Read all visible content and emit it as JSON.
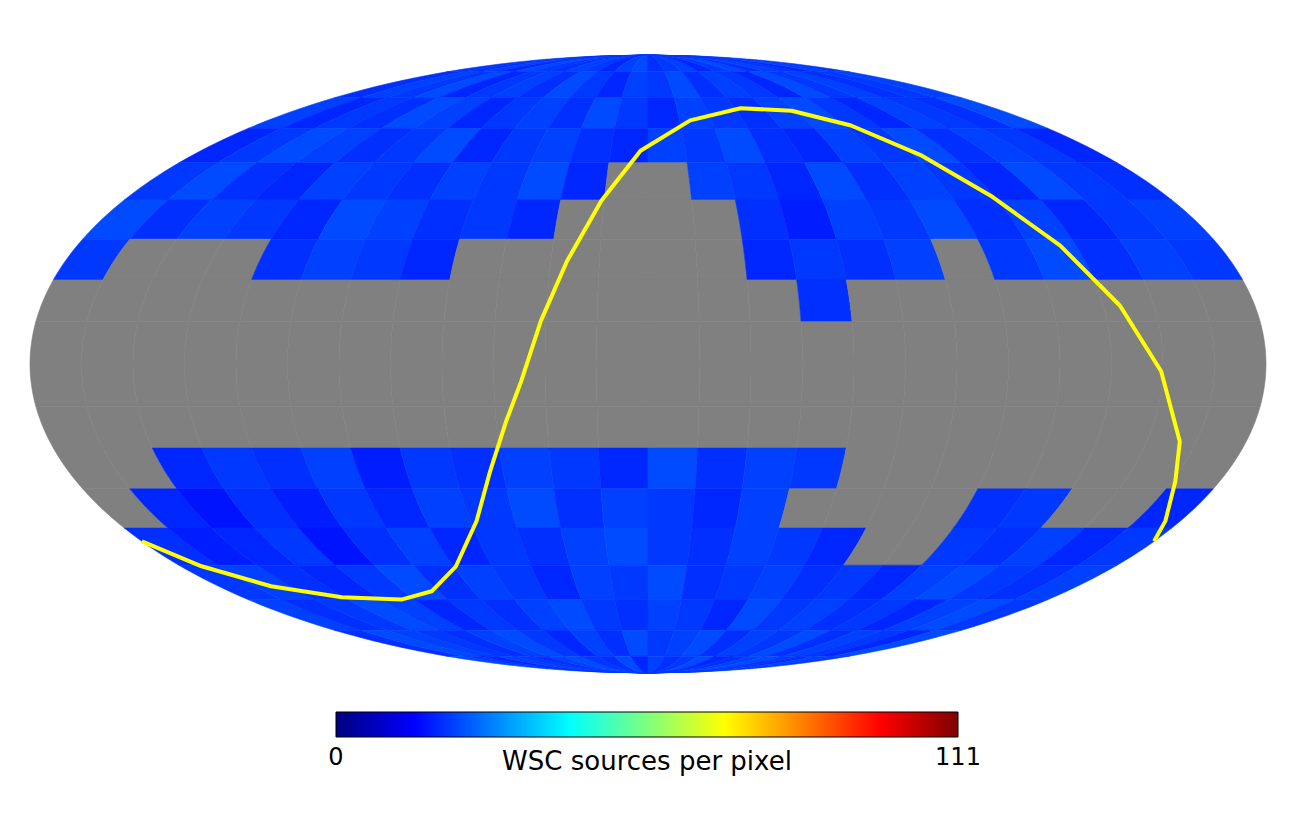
{
  "chart_data": {
    "type": "heatmap",
    "tick_labels": false,
    "lon_edges": [
      180,
      165,
      150,
      135,
      120,
      105,
      90,
      75,
      60,
      45,
      30,
      15,
      0,
      -15,
      -30,
      -45,
      -60,
      -75,
      -90,
      -105,
      -120,
      -135,
      -150,
      -165,
      -180
    ],
    "lat_edges": [
      90,
      80,
      70,
      60,
      50,
      40,
      30,
      20,
      10,
      0,
      -10,
      -20,
      -30,
      -40,
      -50,
      -60,
      -70,
      -80,
      -90
    ],
    "cells": [
      [
        20,
        19,
        21,
        18,
        22,
        20,
        19,
        21,
        20,
        18,
        21,
        22,
        19,
        20,
        21,
        18,
        20,
        22,
        19,
        21,
        20,
        18,
        21,
        20
      ],
      [
        19,
        21,
        20,
        22,
        18,
        20,
        21,
        19,
        22,
        20,
        18,
        21,
        20,
        22,
        19,
        21,
        20,
        18,
        22,
        20,
        21,
        19,
        20,
        21
      ],
      [
        21,
        18,
        20,
        19,
        22,
        21,
        18,
        20,
        21,
        19,
        22,
        20,
        18,
        21,
        20,
        19,
        21,
        22,
        20,
        18,
        21,
        20,
        19,
        22
      ],
      [
        18,
        20,
        22,
        21,
        19,
        20,
        22,
        18,
        20,
        21,
        19,
        18,
        21,
        20,
        22,
        19,
        18,
        21,
        20,
        22,
        19,
        21,
        20,
        18
      ],
      [
        20,
        22,
        19,
        18,
        21,
        20,
        19,
        21,
        20,
        22,
        18,
        null,
        null,
        21,
        20,
        18,
        22,
        19,
        21,
        20,
        18,
        22,
        20,
        19
      ],
      [
        22,
        19,
        21,
        20,
        18,
        22,
        21,
        19,
        20,
        18,
        null,
        null,
        null,
        null,
        19,
        17,
        21,
        20,
        22,
        19,
        21,
        18,
        20,
        21
      ],
      [
        20,
        null,
        null,
        null,
        19,
        21,
        20,
        18,
        null,
        null,
        null,
        null,
        null,
        null,
        18,
        20,
        19,
        21,
        null,
        20,
        22,
        19,
        21,
        20
      ],
      [
        null,
        null,
        null,
        null,
        null,
        null,
        null,
        null,
        null,
        null,
        null,
        null,
        null,
        null,
        null,
        19,
        null,
        null,
        null,
        null,
        null,
        null,
        null,
        null
      ],
      [
        null,
        null,
        null,
        null,
        null,
        null,
        null,
        null,
        null,
        null,
        null,
        null,
        null,
        null,
        null,
        null,
        null,
        null,
        null,
        null,
        null,
        null,
        null,
        null
      ],
      [
        null,
        null,
        null,
        null,
        null,
        null,
        null,
        null,
        null,
        null,
        null,
        null,
        null,
        null,
        null,
        null,
        null,
        null,
        null,
        null,
        null,
        null,
        null,
        null
      ],
      [
        null,
        null,
        null,
        null,
        null,
        null,
        null,
        null,
        null,
        null,
        null,
        null,
        null,
        null,
        null,
        null,
        null,
        null,
        null,
        null,
        null,
        null,
        null,
        null
      ],
      [
        null,
        null,
        18,
        20,
        19,
        21,
        17,
        20,
        19,
        21,
        20,
        18,
        22,
        19,
        21,
        20,
        null,
        null,
        null,
        null,
        null,
        null,
        null,
        null
      ],
      [
        null,
        18,
        16,
        19,
        17,
        20,
        18,
        21,
        20,
        22,
        19,
        21,
        20,
        18,
        21,
        null,
        null,
        null,
        null,
        19,
        20,
        null,
        null,
        18
      ],
      [
        19,
        17,
        18,
        20,
        16,
        19,
        21,
        18,
        20,
        19,
        21,
        22,
        20,
        19,
        21,
        20,
        18,
        null,
        null,
        20,
        19,
        21,
        18,
        20
      ],
      [
        20,
        21,
        19,
        18,
        20,
        22,
        19,
        21,
        20,
        18,
        21,
        20,
        22,
        19,
        20,
        21,
        19,
        20,
        18,
        21,
        22,
        20,
        19,
        21
      ],
      [
        21,
        19,
        20,
        22,
        21,
        18,
        20,
        19,
        21,
        22,
        20,
        19,
        21,
        20,
        18,
        22,
        20,
        21,
        19,
        20,
        18,
        21,
        22,
        20
      ],
      [
        19,
        22,
        21,
        20,
        19,
        21,
        22,
        20,
        18,
        21,
        19,
        22,
        20,
        21,
        22,
        19,
        21,
        20,
        22,
        19,
        21,
        20,
        18,
        22
      ],
      [
        22,
        20,
        18,
        21,
        20,
        19,
        21,
        22,
        20,
        19,
        22,
        18,
        21,
        19,
        20,
        22,
        18,
        19,
        21,
        22,
        20,
        19,
        21,
        20
      ]
    ],
    "colorbar": {
      "label": "WSC sources per pixel",
      "range": [
        0,
        111
      ],
      "ticks": [
        0,
        111
      ]
    },
    "curve": {
      "color": "#ffff00",
      "lon": [
        180,
        172,
        158,
        136,
        111,
        93,
        74,
        58,
        49,
        42,
        37,
        31.5,
        25,
        16,
        3,
        -20,
        -48,
        -73,
        -93,
        -108,
        -119,
        -130,
        -140,
        -149.5,
        -160,
        -166,
        -175,
        -180
      ],
      "lat": [
        -43.5,
        -50.3,
        -56,
        -59.3,
        -60,
        -57.5,
        -50.3,
        -38.2,
        -25.6,
        -13.5,
        -4.1,
        10.2,
        24.6,
        39.8,
        53.4,
        62.5,
        66.4,
        65.6,
        60.9,
        52,
        41.1,
        28.4,
        13.8,
        -1.7,
        -18.4,
        -28.1,
        -38.2,
        -43.5
      ]
    }
  }
}
